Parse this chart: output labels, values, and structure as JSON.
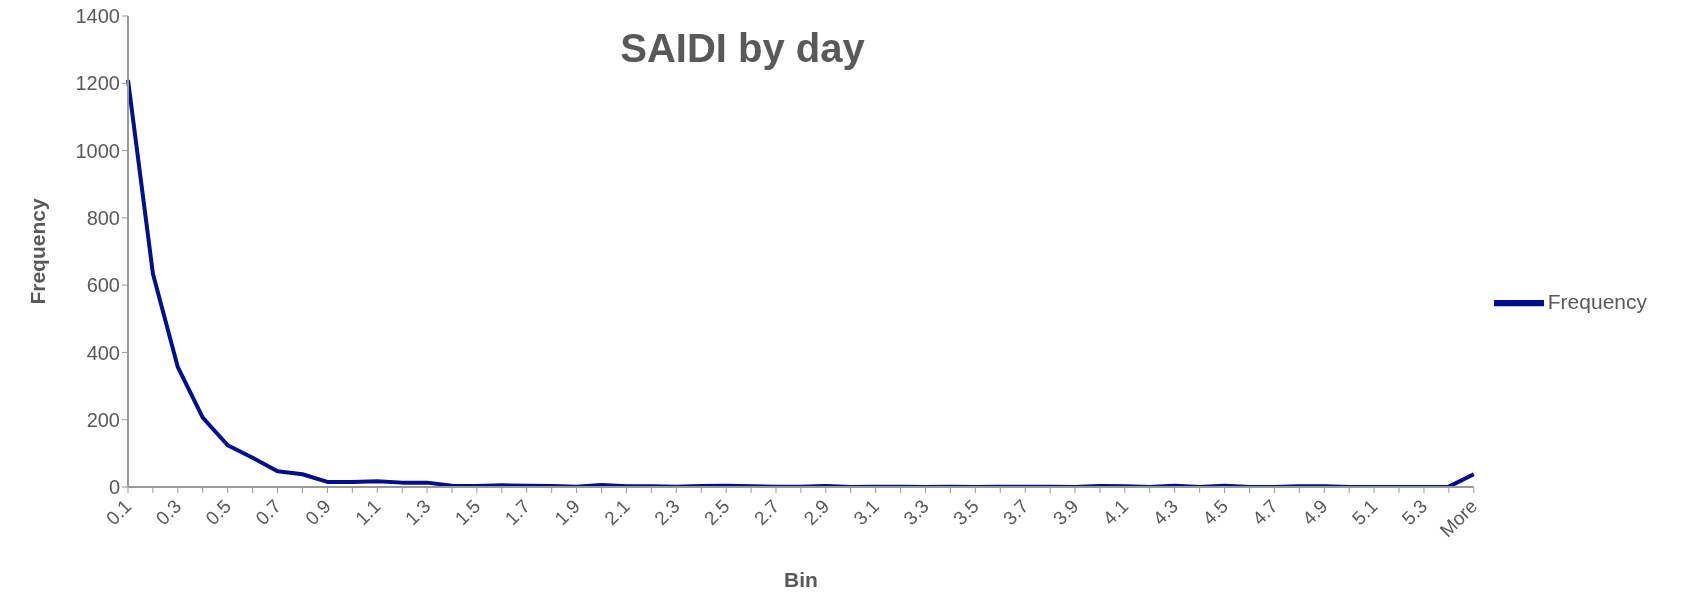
{
  "chart_data": {
    "type": "line",
    "title": "SAIDI by day",
    "xlabel": "Bin",
    "ylabel": "Frequency",
    "categories": [
      "0.1",
      null,
      "0.3",
      null,
      "0.5",
      null,
      "0.7",
      null,
      "0.9",
      null,
      "1.1",
      null,
      "1.3",
      null,
      "1.5",
      null,
      "1.7",
      null,
      "1.9",
      null,
      "2.1",
      null,
      "2.3",
      null,
      "2.5",
      null,
      "2.7",
      null,
      "2.9",
      null,
      "3.1",
      null,
      "3.3",
      null,
      "3.5",
      null,
      "3.7",
      null,
      "3.9",
      null,
      "4.1",
      null,
      "4.3",
      null,
      "4.5",
      null,
      "4.7",
      null,
      "4.9",
      null,
      "5.1",
      null,
      "5.3",
      null,
      "More"
    ],
    "series": [
      {
        "name": "Frequency",
        "color": "#000f8c",
        "values": [
          1210,
          634,
          356,
          206,
          124,
          87,
          47,
          38,
          15,
          15,
          17,
          13,
          13,
          4,
          3,
          5,
          4,
          3,
          1,
          6,
          2,
          2,
          1,
          3,
          4,
          2,
          1,
          1,
          3,
          0,
          1,
          1,
          0,
          1,
          0,
          1,
          1,
          1,
          0,
          3,
          2,
          0,
          4,
          0,
          4,
          0,
          0,
          2,
          2,
          0,
          0,
          0,
          0,
          1,
          38
        ]
      }
    ],
    "ylim": [
      0,
      1400
    ],
    "yticks": [
      0,
      200,
      400,
      600,
      800,
      1000,
      1200,
      1400
    ],
    "legend": "right",
    "marker": "none",
    "line_style": "solid"
  }
}
